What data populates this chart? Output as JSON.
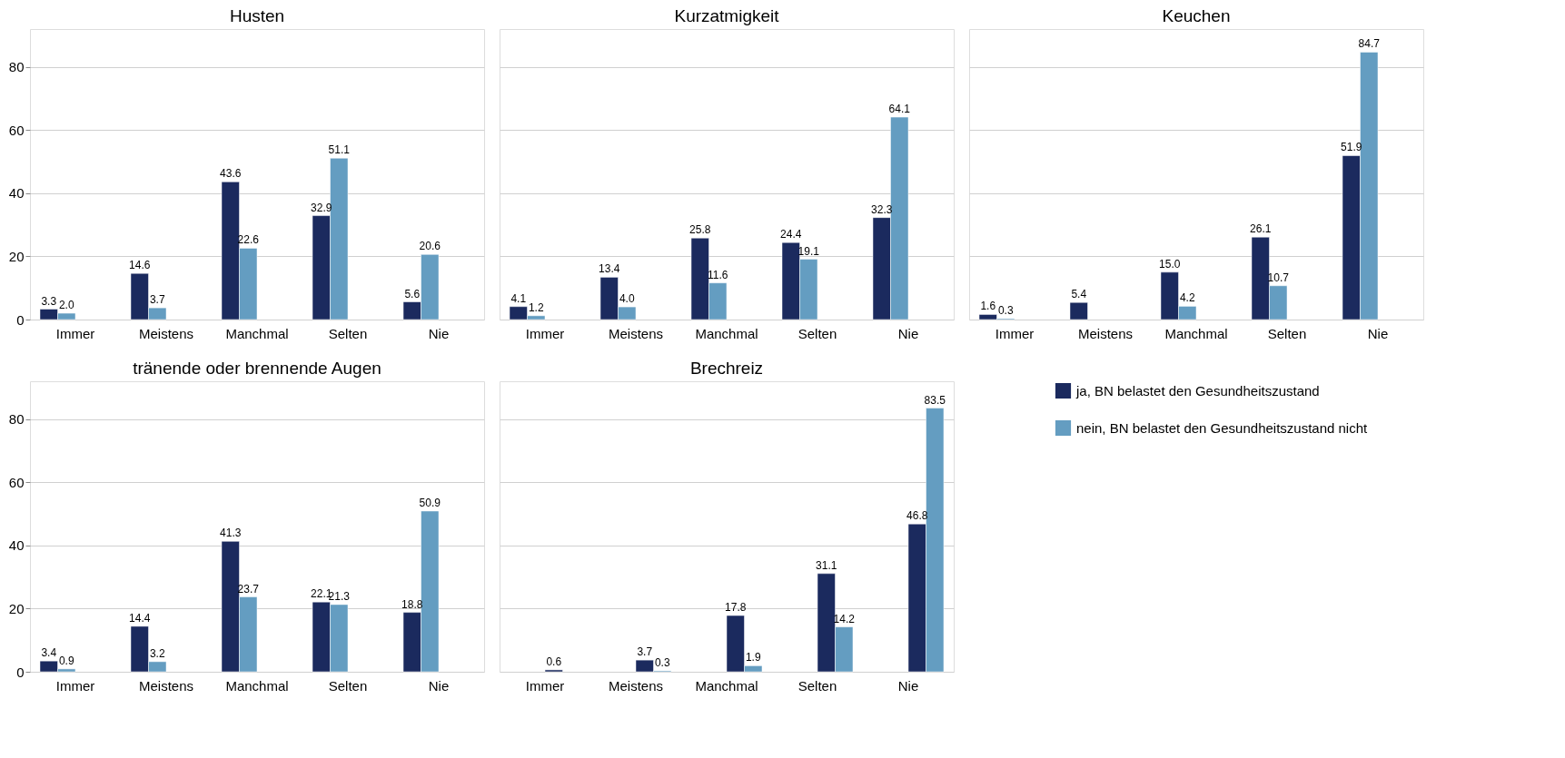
{
  "chart_data": [
    {
      "type": "bar",
      "title": "Husten",
      "categories": [
        "Immer",
        "Meistens",
        "Manchmal",
        "Selten",
        "Nie"
      ],
      "ylim": [
        0,
        92
      ],
      "yticks": [
        0,
        20,
        40,
        60,
        80
      ],
      "grid": "y",
      "series": [
        {
          "color": "#1b2a5e",
          "values": [
            3.3,
            14.6,
            43.6,
            32.9,
            5.6
          ],
          "value_labels": [
            "3.3",
            "14.6",
            "43.6",
            "32.9",
            "5.6"
          ]
        },
        {
          "color": "#649dc1",
          "values": [
            2,
            3.7,
            22.6,
            51.1,
            20.6
          ],
          "value_labels": [
            "2.0",
            "3.7",
            "22.6",
            "51.1",
            "20.6"
          ]
        }
      ]
    },
    {
      "type": "bar",
      "title": "Kurzatmigkeit",
      "categories": [
        "Immer",
        "Meistens",
        "Manchmal",
        "Selten",
        "Nie"
      ],
      "ylim": [
        0,
        92
      ],
      "yticks": [
        0,
        20,
        40,
        60,
        80
      ],
      "grid": "y",
      "tick_labels": "x",
      "series": [
        {
          "color": "#1b2a5e",
          "values": [
            4.1,
            13.4,
            25.8,
            24.4,
            32.3
          ],
          "value_labels": [
            "4.1",
            "13.4",
            "25.8",
            "24.4",
            "32.3"
          ]
        },
        {
          "color": "#649dc1",
          "values": [
            1.2,
            4,
            11.6,
            19.1,
            64.1
          ],
          "value_labels": [
            "1.2",
            "4.0",
            "11.6",
            "19.1",
            "64.1"
          ]
        }
      ]
    },
    {
      "type": "bar",
      "title": "Keuchen",
      "categories": [
        "Immer",
        "Meistens",
        "Manchmal",
        "Selten",
        "Nie"
      ],
      "ylim": [
        0,
        92
      ],
      "yticks": [
        0,
        20,
        40,
        60,
        80
      ],
      "grid": "y",
      "tick_labels": "x",
      "series": [
        {
          "color": "#1b2a5e",
          "values": [
            1.6,
            5.4,
            15,
            26.1,
            51.9
          ],
          "value_labels": [
            "1.6",
            "5.4",
            "15.0",
            "26.1",
            "51.9"
          ]
        },
        {
          "color": "#649dc1",
          "values": [
            0.3,
            null,
            4.2,
            10.7,
            84.7
          ],
          "value_labels": [
            "0.3",
            null,
            "4.2",
            "10.7",
            "84.7"
          ]
        }
      ]
    },
    {
      "type": "bar",
      "title": "tränende oder brennende Augen",
      "categories": [
        "Immer",
        "Meistens",
        "Manchmal",
        "Selten",
        "Nie"
      ],
      "ylim": [
        0,
        92
      ],
      "yticks": [
        0,
        20,
        40,
        60,
        80
      ],
      "grid": "y",
      "series": [
        {
          "color": "#1b2a5e",
          "values": [
            3.4,
            14.4,
            41.3,
            22.1,
            18.8
          ],
          "value_labels": [
            "3.4",
            "14.4",
            "41.3",
            "22.1",
            "18.8"
          ]
        },
        {
          "color": "#649dc1",
          "values": [
            0.9,
            3.2,
            23.7,
            21.3,
            50.9
          ],
          "value_labels": [
            "0.9",
            "3.2",
            "23.7",
            "21.3",
            "50.9"
          ]
        }
      ]
    },
    {
      "type": "bar",
      "title": "Brechreiz",
      "categories": [
        "Immer",
        "Meistens",
        "Manchmal",
        "Selten",
        "Nie"
      ],
      "ylim": [
        0,
        92
      ],
      "yticks": [
        0,
        20,
        40,
        60,
        80
      ],
      "grid": "y",
      "legend": "right",
      "tick_labels": "x",
      "series": [
        {
          "name": "ja, BN belastet den Gesundheitszustand",
          "color": "#1b2a5e",
          "values": [
            0.6,
            3.7,
            17.8,
            31.1,
            46.8
          ],
          "value_labels": [
            "0.6",
            "3.7",
            "17.8",
            "31.1",
            "46.8"
          ]
        },
        {
          "name": "nein, BN belastet den Gesundheitszustand nicht",
          "color": "#649dc1",
          "values": [
            null,
            0.3,
            1.9,
            14.2,
            83.5
          ],
          "value_labels": [
            null,
            "0.3",
            "1.9",
            "14.2",
            "83.5"
          ]
        }
      ]
    }
  ]
}
